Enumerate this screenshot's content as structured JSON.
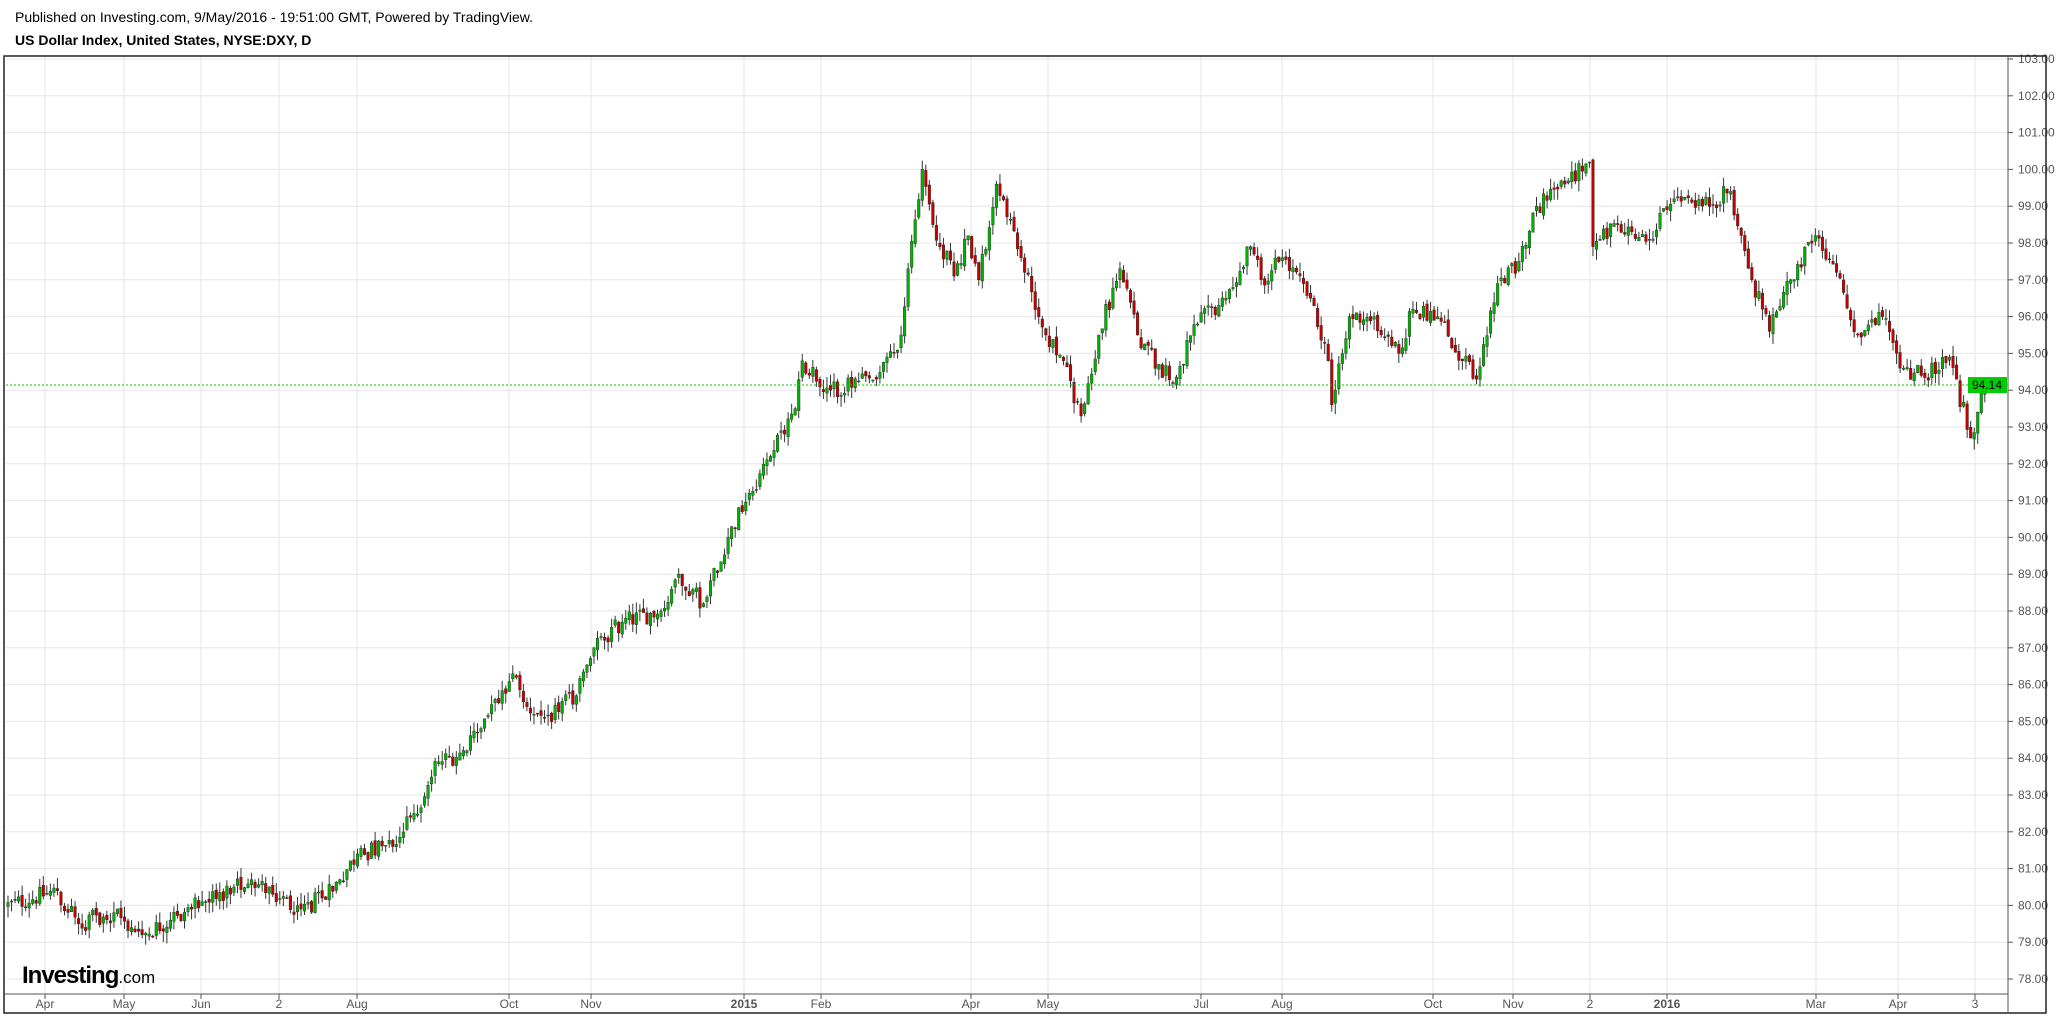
{
  "header": {
    "published": "Published on Investing.com, 9/May/2016 - 19:51:00 GMT, Powered by TradingView.",
    "title": "US Dollar Index, United States, NYSE:DXY, D"
  },
  "logo": {
    "text": "Investing",
    "suffix": ".com"
  },
  "colors": {
    "up": "#00b300",
    "down": "#c40000",
    "wick": "#333333",
    "last_price": "#00cc00",
    "grid": "#e6e6e6"
  },
  "chart_data": {
    "type": "candlestick",
    "title": "US Dollar Index, United States, NYSE:DXY, D",
    "ylim": [
      78,
      103
    ],
    "y_ticks": [
      "103.00",
      "102.00",
      "101.00",
      "100.00",
      "99.00",
      "98.00",
      "97.00",
      "96.00",
      "95.00",
      "94.00",
      "93.00",
      "92.00",
      "91.00",
      "90.00",
      "89.00",
      "88.00",
      "87.00",
      "86.00",
      "85.00",
      "84.00",
      "83.00",
      "82.00",
      "81.00",
      "80.00",
      "79.00",
      "78.00"
    ],
    "x_ticks": [
      "Apr",
      "May",
      "Jun",
      "2",
      "Aug",
      "Oct",
      "Nov",
      "2015",
      "Feb",
      "Apr",
      "May",
      "Jul",
      "Aug",
      "Oct",
      "Nov",
      "2",
      "2016",
      "Mar",
      "Apr",
      "3"
    ],
    "last_price": "94.14",
    "grid": true,
    "approx_closes": [
      [
        "2014-03-17",
        80.0
      ],
      [
        "2014-04-04",
        80.4
      ],
      [
        "2014-04-14",
        79.5
      ],
      [
        "2014-04-28",
        79.8
      ],
      [
        "2014-05-08",
        79.2
      ],
      [
        "2014-05-20",
        79.6
      ],
      [
        "2014-06-02",
        80.1
      ],
      [
        "2014-06-13",
        80.5
      ],
      [
        "2014-06-20",
        80.7
      ],
      [
        "2014-06-30",
        80.3
      ],
      [
        "2014-07-10",
        79.9
      ],
      [
        "2014-07-18",
        80.2
      ],
      [
        "2014-07-25",
        80.7
      ],
      [
        "2014-08-01",
        81.4
      ],
      [
        "2014-08-15",
        81.6
      ],
      [
        "2014-08-25",
        82.5
      ],
      [
        "2014-09-03",
        83.9
      ],
      [
        "2014-09-15",
        84.2
      ],
      [
        "2014-09-25",
        85.6
      ],
      [
        "2014-10-03",
        86.2
      ],
      [
        "2014-10-08",
        85.4
      ],
      [
        "2014-10-15",
        85.1
      ],
      [
        "2014-10-28",
        85.7
      ],
      [
        "2014-11-04",
        87.0
      ],
      [
        "2014-11-14",
        87.7
      ],
      [
        "2014-12-01",
        88.0
      ],
      [
        "2014-12-08",
        89.0
      ],
      [
        "2014-12-17",
        88.2
      ],
      [
        "2014-12-26",
        90.0
      ],
      [
        "2015-01-05",
        91.2
      ],
      [
        "2015-01-13",
        92.2
      ],
      [
        "2015-01-22",
        93.5
      ],
      [
        "2015-01-26",
        94.8
      ],
      [
        "2015-02-05",
        94.0
      ],
      [
        "2015-02-24",
        94.3
      ],
      [
        "2015-03-05",
        95.5
      ],
      [
        "2015-03-09",
        97.3
      ],
      [
        "2015-03-13",
        100.0
      ],
      [
        "2015-03-18",
        98.5
      ],
      [
        "2015-03-26",
        97.1
      ],
      [
        "2015-04-01",
        98.2
      ],
      [
        "2015-04-06",
        97.0
      ],
      [
        "2015-04-13",
        99.6
      ],
      [
        "2015-04-22",
        97.6
      ],
      [
        "2015-05-01",
        95.5
      ],
      [
        "2015-05-08",
        94.8
      ],
      [
        "2015-05-15",
        93.3
      ],
      [
        "2015-05-22",
        95.5
      ],
      [
        "2015-06-01",
        97.3
      ],
      [
        "2015-06-08",
        95.5
      ],
      [
        "2015-06-16",
        94.7
      ],
      [
        "2015-06-22",
        94.2
      ],
      [
        "2015-07-01",
        95.8
      ],
      [
        "2015-07-13",
        96.5
      ],
      [
        "2015-07-22",
        97.9
      ],
      [
        "2015-07-27",
        97.0
      ],
      [
        "2015-08-04",
        97.6
      ],
      [
        "2015-08-14",
        96.5
      ],
      [
        "2015-08-21",
        94.8
      ],
      [
        "2015-08-24",
        93.6
      ],
      [
        "2015-08-31",
        96.0
      ],
      [
        "2015-09-09",
        96.0
      ],
      [
        "2015-09-18",
        95.0
      ],
      [
        "2015-09-24",
        96.2
      ],
      [
        "2015-10-05",
        96.0
      ],
      [
        "2015-10-14",
        94.8
      ],
      [
        "2015-10-20",
        94.3
      ],
      [
        "2015-10-28",
        96.9
      ],
      [
        "2015-11-05",
        97.5
      ],
      [
        "2015-11-12",
        99.0
      ],
      [
        "2015-11-24",
        99.6
      ],
      [
        "2015-12-03",
        100.2
      ],
      [
        "2015-12-04",
        97.9
      ],
      [
        "2015-12-15",
        98.5
      ],
      [
        "2015-12-28",
        98.1
      ],
      [
        "2016-01-06",
        99.2
      ],
      [
        "2016-01-18",
        99.0
      ],
      [
        "2016-01-28",
        99.4
      ],
      [
        "2016-02-05",
        97.0
      ],
      [
        "2016-02-12",
        95.6
      ],
      [
        "2016-02-22",
        97.0
      ],
      [
        "2016-03-02",
        98.2
      ],
      [
        "2016-03-10",
        97.2
      ],
      [
        "2016-03-18",
        95.5
      ],
      [
        "2016-03-29",
        96.0
      ],
      [
        "2016-04-05",
        94.6
      ],
      [
        "2016-04-13",
        94.4
      ],
      [
        "2016-04-25",
        94.9
      ],
      [
        "2016-05-03",
        92.7
      ],
      [
        "2016-05-09",
        94.14
      ]
    ]
  }
}
